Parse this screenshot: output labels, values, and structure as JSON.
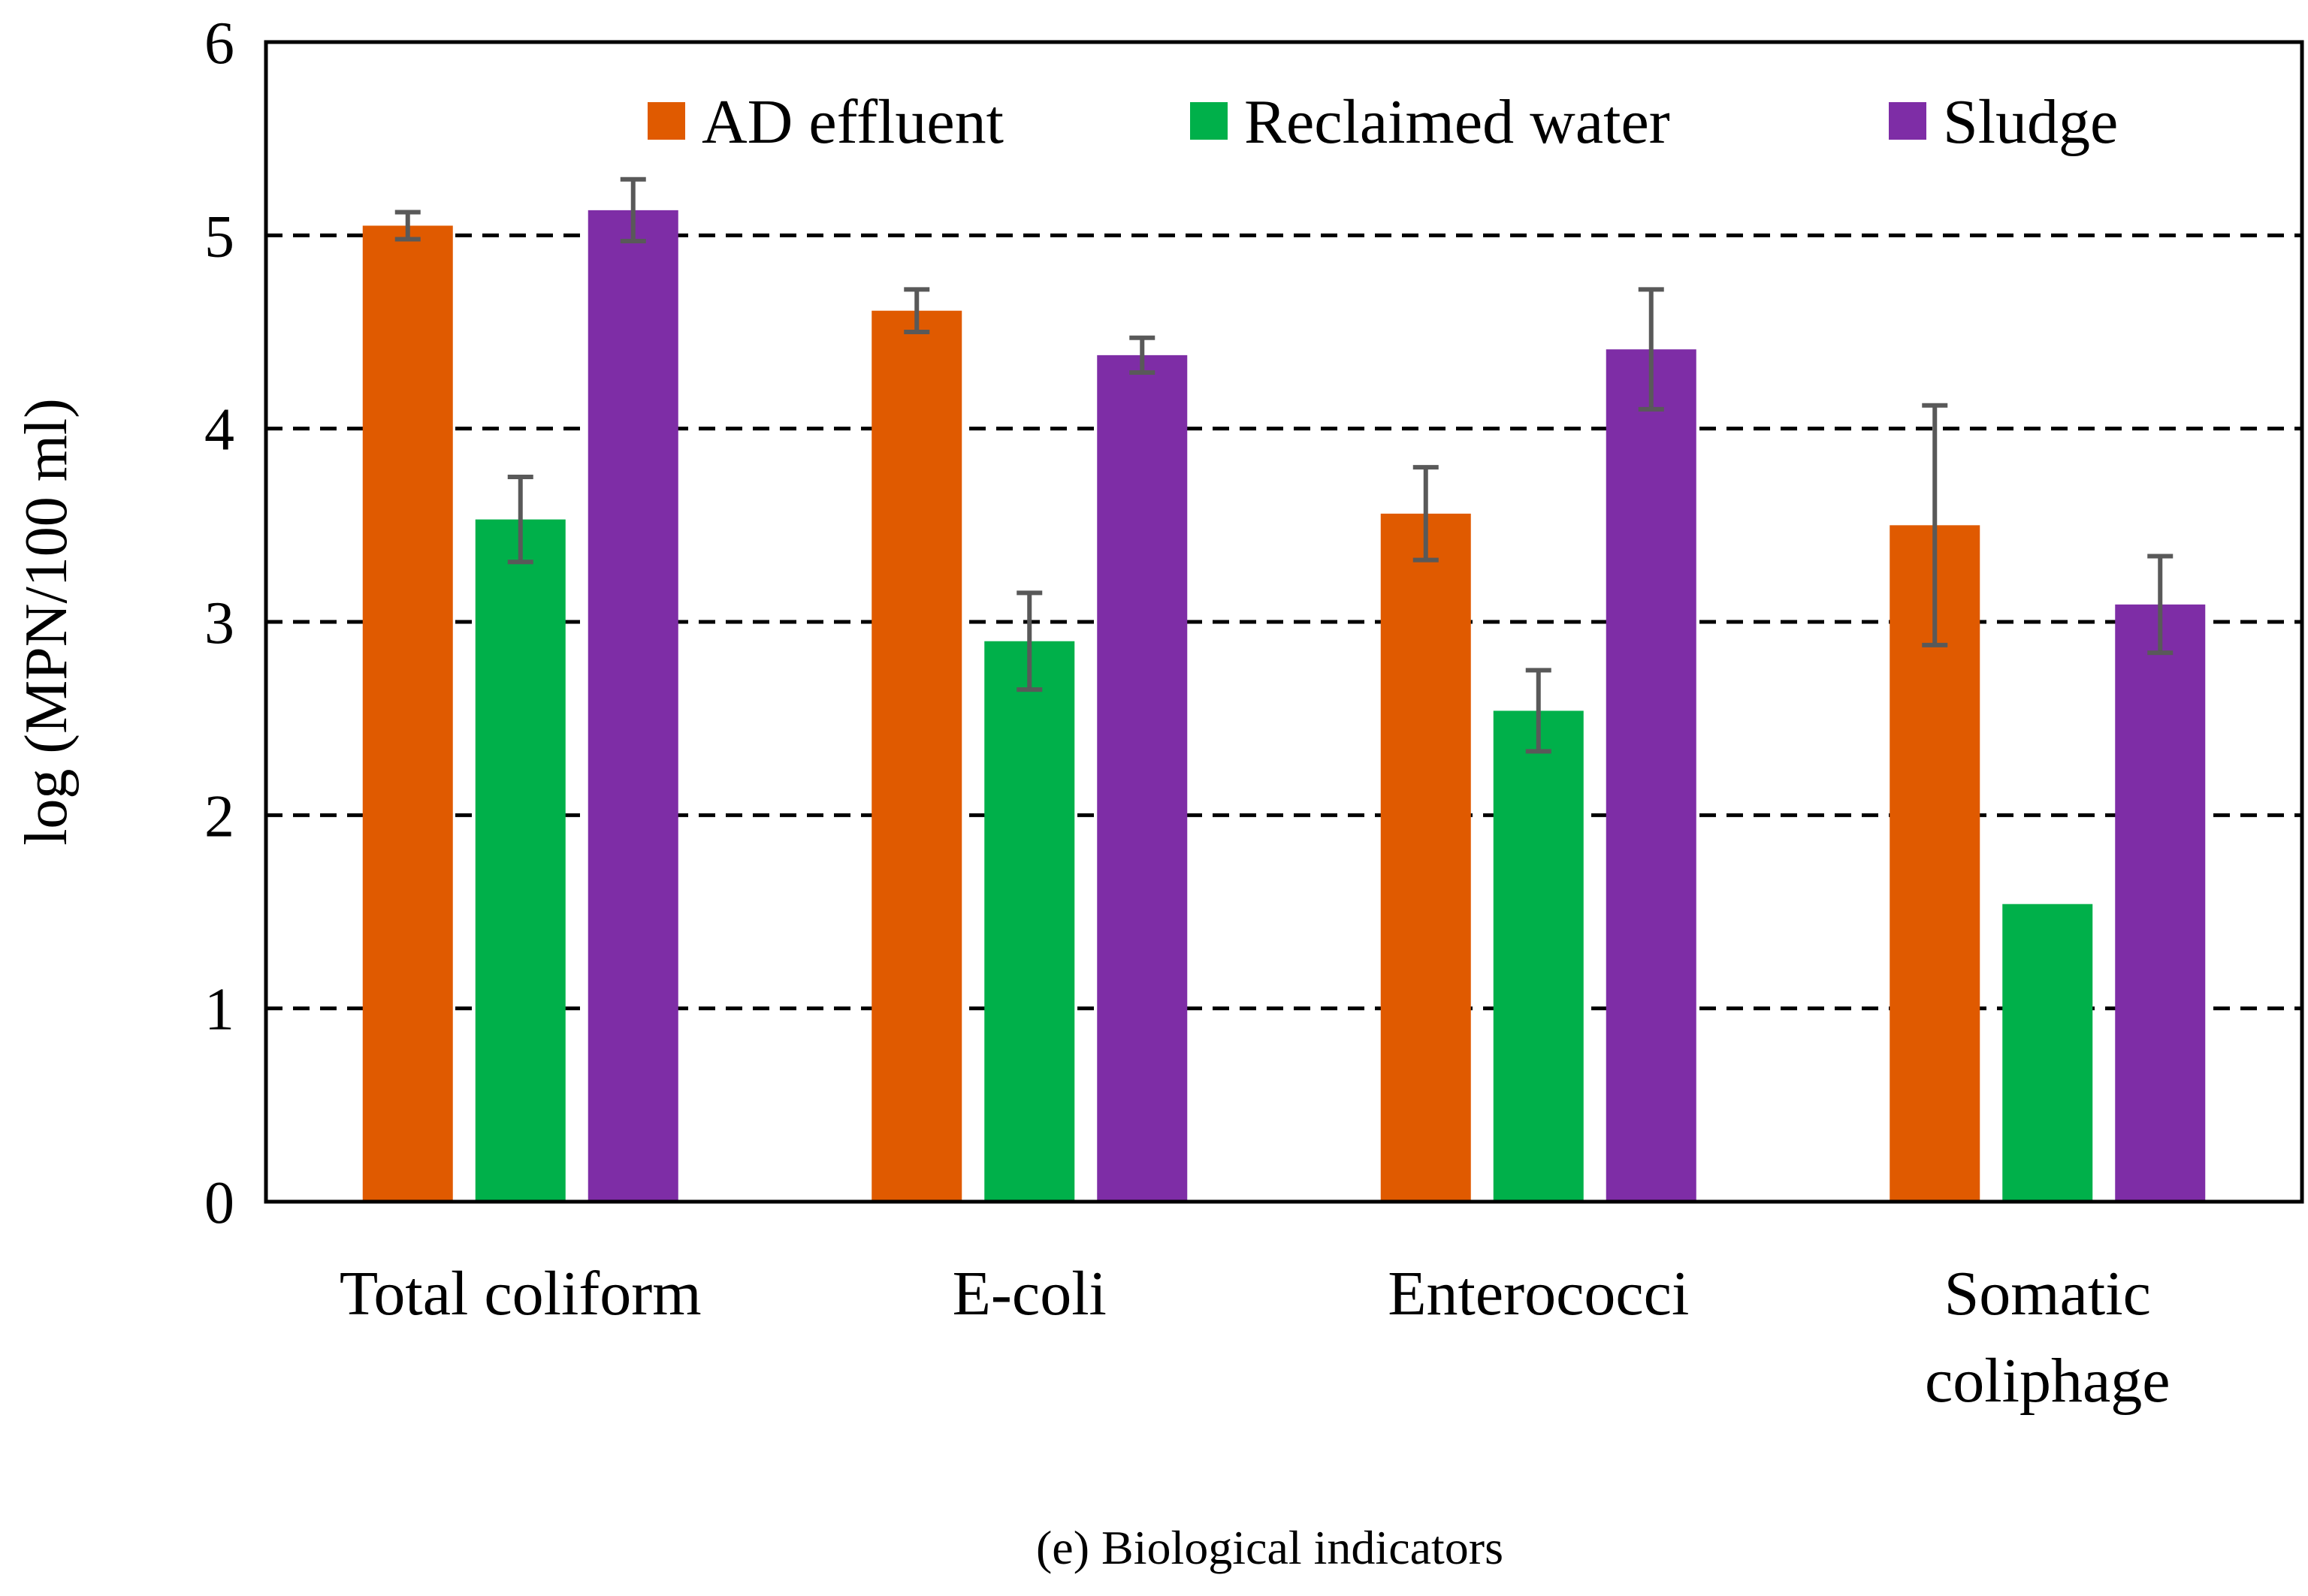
{
  "chart_data": {
    "type": "bar",
    "title": "",
    "caption": "(e) Biological indicators",
    "xlabel": "",
    "ylabel": "log (MPN/100 ml)",
    "ylim": [
      0,
      6
    ],
    "yticks": [
      0,
      1,
      2,
      3,
      4,
      5,
      6
    ],
    "grid": "dashed horizontal",
    "legend_position": "top",
    "categories": [
      [
        "Total coliform"
      ],
      [
        "E-coli"
      ],
      [
        "Enterococci"
      ],
      [
        "Somatic",
        "coliphage"
      ]
    ],
    "series": [
      {
        "name": "AD effluent",
        "color": "#e05a00",
        "values": [
          5.05,
          4.61,
          3.56,
          3.5
        ],
        "errors": [
          0.07,
          0.11,
          0.24,
          0.62
        ]
      },
      {
        "name": "Reclaimed water",
        "color": "#00b04a",
        "values": [
          3.53,
          2.9,
          2.54,
          1.54
        ],
        "errors": [
          0.22,
          0.25,
          0.21,
          0
        ]
      },
      {
        "name": "Sludge",
        "color": "#7e2da6",
        "values": [
          5.13,
          4.38,
          4.41,
          3.09
        ],
        "errors": [
          0.16,
          0.09,
          0.31,
          0.25
        ]
      }
    ],
    "error_bar_color": "#595959"
  }
}
